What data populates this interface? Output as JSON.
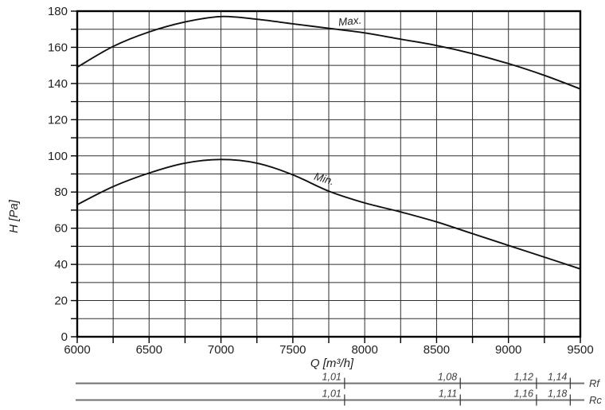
{
  "chart_data": {
    "type": "line",
    "title": "",
    "xlabel": "Q [m³/h]",
    "ylabel": "H [Pa]",
    "xlim": [
      6000,
      9500
    ],
    "ylim": [
      0,
      180
    ],
    "x_grid_step": 250,
    "y_grid_step": 10,
    "x_tick_label_step": 500,
    "y_tick_label_step": 20,
    "grid": true,
    "legend_position": "inline-curve-labels",
    "x_tick_labels": [
      "6000",
      "6500",
      "7000",
      "7500",
      "8000",
      "8500",
      "9000",
      "9500"
    ],
    "y_tick_labels": [
      "0",
      "20",
      "40",
      "60",
      "80",
      "100",
      "120",
      "140",
      "160",
      "180"
    ],
    "x": [
      6000,
      6250,
      6500,
      6750,
      7000,
      7250,
      7500,
      7750,
      8000,
      8250,
      8500,
      8750,
      9000,
      9250,
      9500
    ],
    "series": [
      {
        "name": "Max.",
        "values": [
          149,
          160.5,
          168.5,
          174,
          177,
          175.5,
          173,
          170.5,
          168,
          164.5,
          161,
          156.5,
          151,
          144.5,
          137
        ]
      },
      {
        "name": "Min.",
        "values": [
          73,
          83,
          90.5,
          96,
          98,
          96,
          89.5,
          80.5,
          74,
          69,
          63.5,
          57,
          50.5,
          44,
          37.5
        ]
      }
    ],
    "secondary_scales": [
      {
        "name": "Rf",
        "values": [
          "1,01",
          "1,08",
          "1,12",
          "1,14"
        ],
        "tick_q": [
          7860,
          8665,
          9195,
          9430
        ]
      },
      {
        "name": "Rc",
        "values": [
          "1,01",
          "1,11",
          "1,16",
          "1,18"
        ],
        "tick_q": [
          7860,
          8665,
          9195,
          9430
        ]
      }
    ]
  },
  "colors": {
    "background": "#ffffff",
    "grid": "#2e2e2e",
    "border": "#000000",
    "curve": "#111111",
    "text": "#1f1f1f",
    "scale_line": "#707070",
    "scale_tick": "#3c3c3c",
    "scale_text": "#3c3c3c"
  }
}
